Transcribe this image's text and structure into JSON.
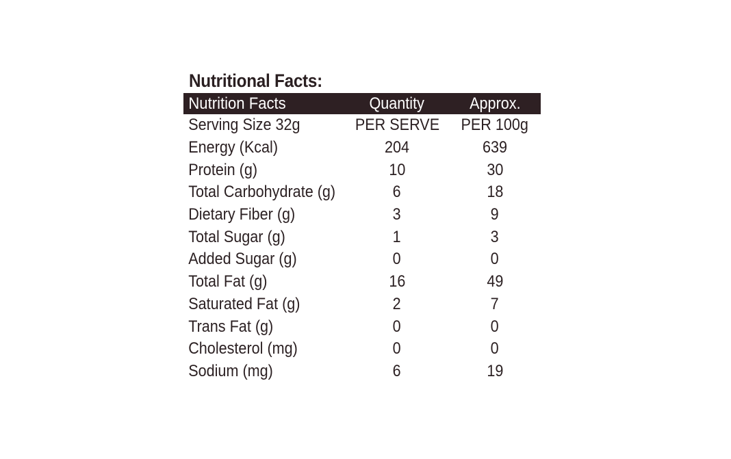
{
  "title": "Nutritional Facts:",
  "header": {
    "col1": "Nutrition Facts",
    "col2": "Quantity",
    "col3": "Approx."
  },
  "rows": [
    {
      "name": "Serving Size 32g",
      "per_serve": "PER SERVE",
      "per_100g": "PER 100g"
    },
    {
      "name": "Energy (Kcal)",
      "per_serve": "204",
      "per_100g": "639"
    },
    {
      "name": "Protein (g)",
      "per_serve": "10",
      "per_100g": "30"
    },
    {
      "name": "Total Carbohydrate (g)",
      "per_serve": "6",
      "per_100g": "18"
    },
    {
      "name": "Dietary Fiber (g)",
      "per_serve": "3",
      "per_100g": "9"
    },
    {
      "name": "Total Sugar (g)",
      "per_serve": "1",
      "per_100g": "3"
    },
    {
      "name": "Added Sugar (g)",
      "per_serve": "0",
      "per_100g": "0"
    },
    {
      "name": "Total Fat (g)",
      "per_serve": "16",
      "per_100g": "49"
    },
    {
      "name": "Saturated Fat (g)",
      "per_serve": "2",
      "per_100g": "7"
    },
    {
      "name": "Trans Fat (g)",
      "per_serve": "0",
      "per_100g": "0"
    },
    {
      "name": "Cholesterol (mg)",
      "per_serve": "0",
      "per_100g": "0"
    },
    {
      "name": "Sodium (mg)",
      "per_serve": "6",
      "per_100g": "19"
    }
  ],
  "colors": {
    "text": "#2a1f21",
    "header_bg": "#2e2023",
    "header_text": "#ffffff",
    "background": "#ffffff"
  }
}
